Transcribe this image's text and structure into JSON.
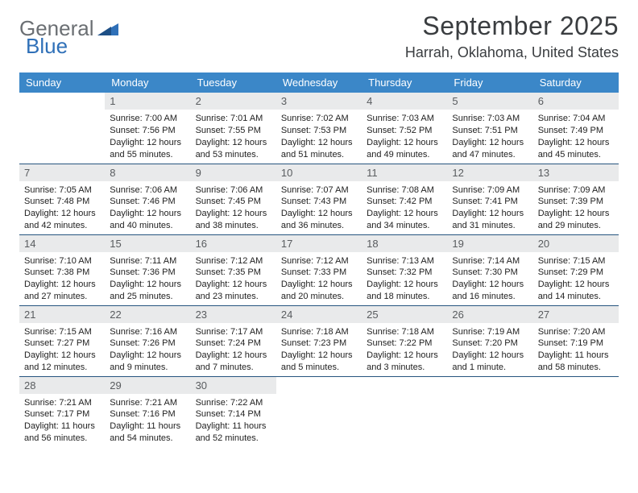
{
  "logo": {
    "word1": "General",
    "word2": "Blue",
    "triangle_color": "#2f70b8"
  },
  "header": {
    "month_title": "September 2025",
    "location": "Harrah, Oklahoma, United States"
  },
  "colors": {
    "header_bg": "#3b87c8",
    "header_fg": "#ffffff",
    "row_divider": "#26557f",
    "daynum_bg": "#e9eaeb",
    "daynum_fg": "#595c5f",
    "text": "#222222"
  },
  "weekdays": [
    "Sunday",
    "Monday",
    "Tuesday",
    "Wednesday",
    "Thursday",
    "Friday",
    "Saturday"
  ],
  "grid": [
    [
      {
        "blank": true
      },
      {
        "day": "1",
        "sunrise": "Sunrise: 7:00 AM",
        "sunset": "Sunset: 7:56 PM",
        "daylight": "Daylight: 12 hours and 55 minutes."
      },
      {
        "day": "2",
        "sunrise": "Sunrise: 7:01 AM",
        "sunset": "Sunset: 7:55 PM",
        "daylight": "Daylight: 12 hours and 53 minutes."
      },
      {
        "day": "3",
        "sunrise": "Sunrise: 7:02 AM",
        "sunset": "Sunset: 7:53 PM",
        "daylight": "Daylight: 12 hours and 51 minutes."
      },
      {
        "day": "4",
        "sunrise": "Sunrise: 7:03 AM",
        "sunset": "Sunset: 7:52 PM",
        "daylight": "Daylight: 12 hours and 49 minutes."
      },
      {
        "day": "5",
        "sunrise": "Sunrise: 7:03 AM",
        "sunset": "Sunset: 7:51 PM",
        "daylight": "Daylight: 12 hours and 47 minutes."
      },
      {
        "day": "6",
        "sunrise": "Sunrise: 7:04 AM",
        "sunset": "Sunset: 7:49 PM",
        "daylight": "Daylight: 12 hours and 45 minutes."
      }
    ],
    [
      {
        "day": "7",
        "sunrise": "Sunrise: 7:05 AM",
        "sunset": "Sunset: 7:48 PM",
        "daylight": "Daylight: 12 hours and 42 minutes."
      },
      {
        "day": "8",
        "sunrise": "Sunrise: 7:06 AM",
        "sunset": "Sunset: 7:46 PM",
        "daylight": "Daylight: 12 hours and 40 minutes."
      },
      {
        "day": "9",
        "sunrise": "Sunrise: 7:06 AM",
        "sunset": "Sunset: 7:45 PM",
        "daylight": "Daylight: 12 hours and 38 minutes."
      },
      {
        "day": "10",
        "sunrise": "Sunrise: 7:07 AM",
        "sunset": "Sunset: 7:43 PM",
        "daylight": "Daylight: 12 hours and 36 minutes."
      },
      {
        "day": "11",
        "sunrise": "Sunrise: 7:08 AM",
        "sunset": "Sunset: 7:42 PM",
        "daylight": "Daylight: 12 hours and 34 minutes."
      },
      {
        "day": "12",
        "sunrise": "Sunrise: 7:09 AM",
        "sunset": "Sunset: 7:41 PM",
        "daylight": "Daylight: 12 hours and 31 minutes."
      },
      {
        "day": "13",
        "sunrise": "Sunrise: 7:09 AM",
        "sunset": "Sunset: 7:39 PM",
        "daylight": "Daylight: 12 hours and 29 minutes."
      }
    ],
    [
      {
        "day": "14",
        "sunrise": "Sunrise: 7:10 AM",
        "sunset": "Sunset: 7:38 PM",
        "daylight": "Daylight: 12 hours and 27 minutes."
      },
      {
        "day": "15",
        "sunrise": "Sunrise: 7:11 AM",
        "sunset": "Sunset: 7:36 PM",
        "daylight": "Daylight: 12 hours and 25 minutes."
      },
      {
        "day": "16",
        "sunrise": "Sunrise: 7:12 AM",
        "sunset": "Sunset: 7:35 PM",
        "daylight": "Daylight: 12 hours and 23 minutes."
      },
      {
        "day": "17",
        "sunrise": "Sunrise: 7:12 AM",
        "sunset": "Sunset: 7:33 PM",
        "daylight": "Daylight: 12 hours and 20 minutes."
      },
      {
        "day": "18",
        "sunrise": "Sunrise: 7:13 AM",
        "sunset": "Sunset: 7:32 PM",
        "daylight": "Daylight: 12 hours and 18 minutes."
      },
      {
        "day": "19",
        "sunrise": "Sunrise: 7:14 AM",
        "sunset": "Sunset: 7:30 PM",
        "daylight": "Daylight: 12 hours and 16 minutes."
      },
      {
        "day": "20",
        "sunrise": "Sunrise: 7:15 AM",
        "sunset": "Sunset: 7:29 PM",
        "daylight": "Daylight: 12 hours and 14 minutes."
      }
    ],
    [
      {
        "day": "21",
        "sunrise": "Sunrise: 7:15 AM",
        "sunset": "Sunset: 7:27 PM",
        "daylight": "Daylight: 12 hours and 12 minutes."
      },
      {
        "day": "22",
        "sunrise": "Sunrise: 7:16 AM",
        "sunset": "Sunset: 7:26 PM",
        "daylight": "Daylight: 12 hours and 9 minutes."
      },
      {
        "day": "23",
        "sunrise": "Sunrise: 7:17 AM",
        "sunset": "Sunset: 7:24 PM",
        "daylight": "Daylight: 12 hours and 7 minutes."
      },
      {
        "day": "24",
        "sunrise": "Sunrise: 7:18 AM",
        "sunset": "Sunset: 7:23 PM",
        "daylight": "Daylight: 12 hours and 5 minutes."
      },
      {
        "day": "25",
        "sunrise": "Sunrise: 7:18 AM",
        "sunset": "Sunset: 7:22 PM",
        "daylight": "Daylight: 12 hours and 3 minutes."
      },
      {
        "day": "26",
        "sunrise": "Sunrise: 7:19 AM",
        "sunset": "Sunset: 7:20 PM",
        "daylight": "Daylight: 12 hours and 1 minute."
      },
      {
        "day": "27",
        "sunrise": "Sunrise: 7:20 AM",
        "sunset": "Sunset: 7:19 PM",
        "daylight": "Daylight: 11 hours and 58 minutes."
      }
    ],
    [
      {
        "day": "28",
        "sunrise": "Sunrise: 7:21 AM",
        "sunset": "Sunset: 7:17 PM",
        "daylight": "Daylight: 11 hours and 56 minutes."
      },
      {
        "day": "29",
        "sunrise": "Sunrise: 7:21 AM",
        "sunset": "Sunset: 7:16 PM",
        "daylight": "Daylight: 11 hours and 54 minutes."
      },
      {
        "day": "30",
        "sunrise": "Sunrise: 7:22 AM",
        "sunset": "Sunset: 7:14 PM",
        "daylight": "Daylight: 11 hours and 52 minutes."
      },
      {
        "blank": true
      },
      {
        "blank": true
      },
      {
        "blank": true
      },
      {
        "blank": true
      }
    ]
  ]
}
